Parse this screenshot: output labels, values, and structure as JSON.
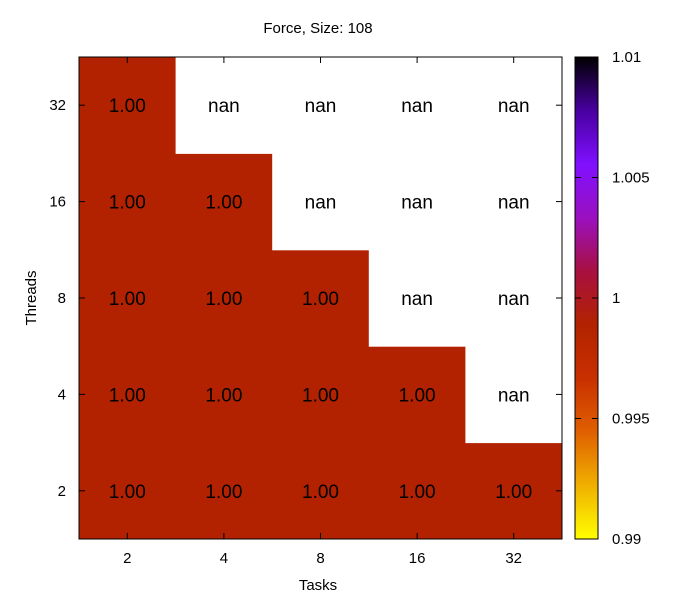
{
  "chart_data": {
    "type": "heatmap",
    "title": "Force, Size: 108",
    "xlabel": "Tasks",
    "ylabel": "Threads",
    "x_categories": [
      "2",
      "4",
      "8",
      "16",
      "32"
    ],
    "y_categories": [
      "2",
      "4",
      "8",
      "16",
      "32"
    ],
    "cells": [
      {
        "x": "2",
        "y": "2",
        "value": 1.0,
        "label": "1.00"
      },
      {
        "x": "4",
        "y": "2",
        "value": 1.0,
        "label": "1.00"
      },
      {
        "x": "8",
        "y": "2",
        "value": 1.0,
        "label": "1.00"
      },
      {
        "x": "16",
        "y": "2",
        "value": 1.0,
        "label": "1.00"
      },
      {
        "x": "32",
        "y": "2",
        "value": 1.0,
        "label": "1.00"
      },
      {
        "x": "2",
        "y": "4",
        "value": 1.0,
        "label": "1.00"
      },
      {
        "x": "4",
        "y": "4",
        "value": 1.0,
        "label": "1.00"
      },
      {
        "x": "8",
        "y": "4",
        "value": 1.0,
        "label": "1.00"
      },
      {
        "x": "16",
        "y": "4",
        "value": 1.0,
        "label": "1.00"
      },
      {
        "x": "32",
        "y": "4",
        "value": null,
        "label": "nan"
      },
      {
        "x": "2",
        "y": "8",
        "value": 1.0,
        "label": "1.00"
      },
      {
        "x": "4",
        "y": "8",
        "value": 1.0,
        "label": "1.00"
      },
      {
        "x": "8",
        "y": "8",
        "value": 1.0,
        "label": "1.00"
      },
      {
        "x": "16",
        "y": "8",
        "value": null,
        "label": "nan"
      },
      {
        "x": "32",
        "y": "8",
        "value": null,
        "label": "nan"
      },
      {
        "x": "2",
        "y": "16",
        "value": 1.0,
        "label": "1.00"
      },
      {
        "x": "4",
        "y": "16",
        "value": 1.0,
        "label": "1.00"
      },
      {
        "x": "8",
        "y": "16",
        "value": null,
        "label": "nan"
      },
      {
        "x": "16",
        "y": "16",
        "value": null,
        "label": "nan"
      },
      {
        "x": "32",
        "y": "16",
        "value": null,
        "label": "nan"
      },
      {
        "x": "2",
        "y": "32",
        "value": 1.0,
        "label": "1.00"
      },
      {
        "x": "4",
        "y": "32",
        "value": null,
        "label": "nan"
      },
      {
        "x": "8",
        "y": "32",
        "value": null,
        "label": "nan"
      },
      {
        "x": "16",
        "y": "32",
        "value": null,
        "label": "nan"
      },
      {
        "x": "32",
        "y": "32",
        "value": null,
        "label": "nan"
      }
    ],
    "colorbar": {
      "range": [
        0.99,
        1.01
      ],
      "ticks": [
        {
          "value": 0.99,
          "label": "0.99"
        },
        {
          "value": 0.995,
          "label": "0.995"
        },
        {
          "value": 1.0,
          "label": "1"
        },
        {
          "value": 1.005,
          "label": "1.005"
        },
        {
          "value": 1.01,
          "label": "1.01"
        }
      ]
    },
    "colors": {
      "value_cell": "#b22200",
      "nan_cell": "#ffffff",
      "colormap": [
        "#ffff00",
        "#f0b000",
        "#e06000",
        "#c83000",
        "#b22200",
        "#a81040",
        "#9a10c0",
        "#8010ff",
        "#4800a0",
        "#000000"
      ]
    }
  }
}
